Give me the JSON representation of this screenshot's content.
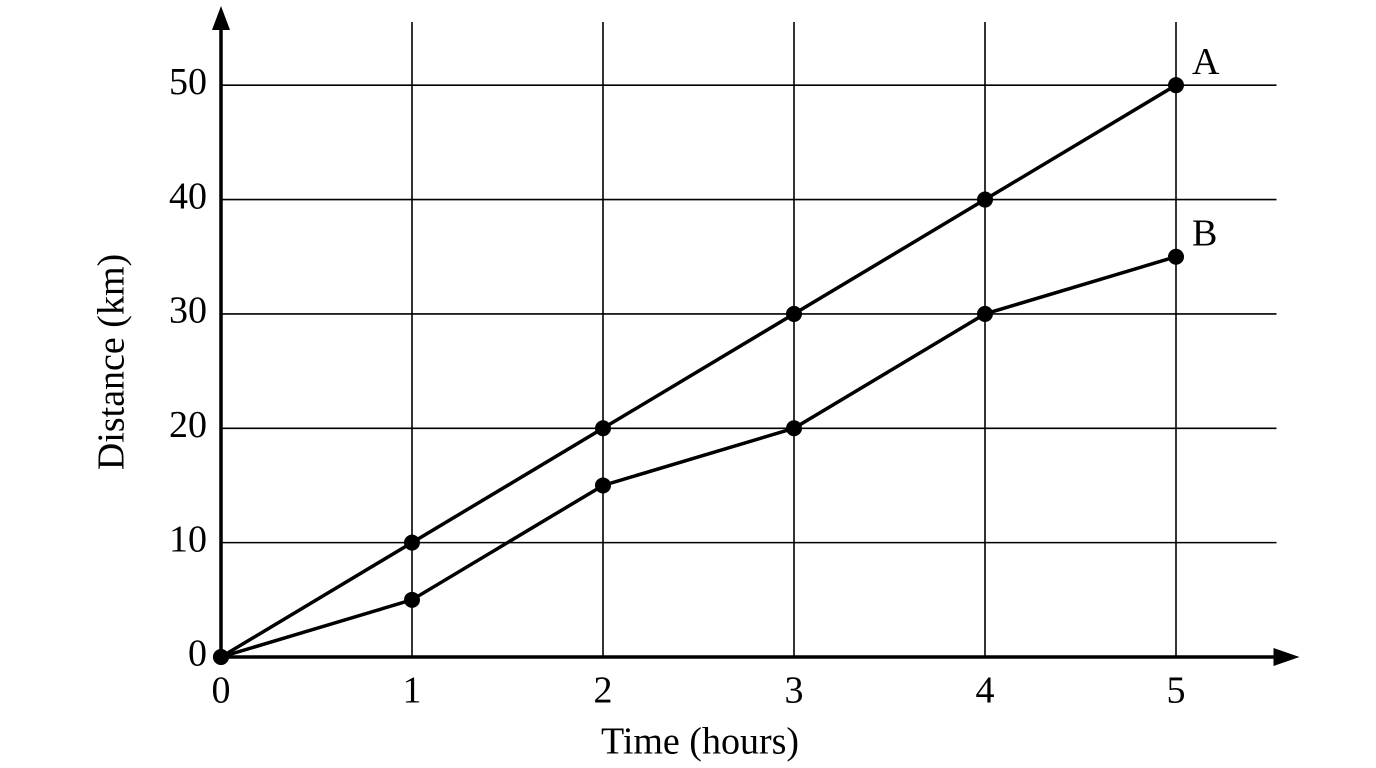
{
  "chart_data": {
    "type": "line",
    "x_label": "Time (hours)",
    "y_label": "Distance (km)",
    "x": [
      0,
      1,
      2,
      3,
      4,
      5
    ],
    "series": [
      {
        "name": "A",
        "color": "#000000",
        "values": [
          0,
          10,
          20,
          30,
          40,
          50
        ]
      },
      {
        "name": "B",
        "color": "#000000",
        "values": [
          0,
          5,
          15,
          20,
          30,
          35
        ]
      }
    ],
    "xlim": [
      0,
      5.5
    ],
    "ylim": [
      0,
      55
    ],
    "xticks": [
      0,
      1,
      2,
      3,
      4,
      5
    ],
    "yticks": [
      0,
      10,
      20,
      30,
      40,
      50
    ],
    "grid": true
  }
}
